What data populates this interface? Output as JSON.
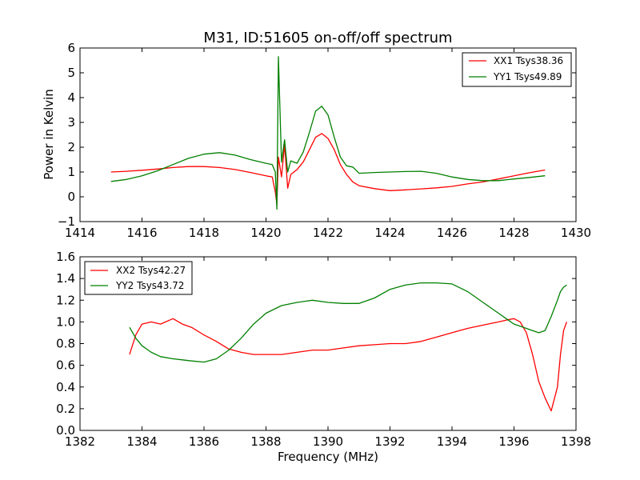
{
  "chart_data": [
    {
      "type": "line",
      "title": "M31, ID:51605 on-off/off spectrum",
      "xlabel": "",
      "ylabel": "Power in Kelvin",
      "xlim": [
        1414,
        1430
      ],
      "ylim": [
        -1,
        6
      ],
      "xticks": [
        "1414",
        "1416",
        "1418",
        "1420",
        "1422",
        "1424",
        "1426",
        "1428",
        "1430"
      ],
      "yticks": [
        "−1",
        "0",
        "1",
        "2",
        "3",
        "4",
        "5",
        "6"
      ],
      "grid": false,
      "legend_position": "top-right",
      "series": [
        {
          "name": "XX1 Tsys38.36",
          "color": "#ff0000",
          "x": [
            1415.0,
            1415.5,
            1416.0,
            1416.5,
            1417.0,
            1417.5,
            1418.0,
            1418.5,
            1419.0,
            1419.5,
            1420.0,
            1420.2,
            1420.3,
            1420.35,
            1420.4,
            1420.5,
            1420.6,
            1420.7,
            1420.8,
            1421.0,
            1421.2,
            1421.4,
            1421.6,
            1421.8,
            1422.0,
            1422.2,
            1422.4,
            1422.6,
            1422.8,
            1423.0,
            1423.5,
            1424.0,
            1424.5,
            1425.0,
            1425.5,
            1426.0,
            1426.5,
            1427.0,
            1427.5,
            1428.0,
            1428.5,
            1429.0
          ],
          "y": [
            1.0,
            1.03,
            1.07,
            1.12,
            1.18,
            1.22,
            1.22,
            1.18,
            1.1,
            0.98,
            0.85,
            0.8,
            0.2,
            -0.3,
            1.6,
            0.8,
            2.1,
            0.35,
            0.9,
            1.1,
            1.4,
            1.9,
            2.4,
            2.55,
            2.35,
            1.9,
            1.3,
            0.9,
            0.6,
            0.45,
            0.33,
            0.25,
            0.28,
            0.32,
            0.36,
            0.42,
            0.52,
            0.6,
            0.72,
            0.85,
            0.97,
            1.08
          ]
        },
        {
          "name": "YY1 Tsys49.89",
          "color": "#008000",
          "x": [
            1415.0,
            1415.5,
            1416.0,
            1416.5,
            1417.0,
            1417.5,
            1418.0,
            1418.5,
            1419.0,
            1419.5,
            1420.0,
            1420.2,
            1420.3,
            1420.35,
            1420.4,
            1420.5,
            1420.6,
            1420.7,
            1420.8,
            1421.0,
            1421.2,
            1421.4,
            1421.6,
            1421.8,
            1422.0,
            1422.2,
            1422.4,
            1422.6,
            1422.8,
            1423.0,
            1423.5,
            1424.0,
            1424.5,
            1425.0,
            1425.5,
            1426.0,
            1426.5,
            1427.0,
            1427.5,
            1428.0,
            1428.5,
            1429.0
          ],
          "y": [
            0.62,
            0.7,
            0.85,
            1.05,
            1.3,
            1.55,
            1.72,
            1.78,
            1.68,
            1.5,
            1.35,
            1.3,
            1.0,
            -0.5,
            5.65,
            1.4,
            2.3,
            1.0,
            1.45,
            1.35,
            1.8,
            2.6,
            3.45,
            3.65,
            3.3,
            2.4,
            1.6,
            1.25,
            1.2,
            0.95,
            0.98,
            1.0,
            1.02,
            1.03,
            0.95,
            0.8,
            0.7,
            0.65,
            0.65,
            0.72,
            0.78,
            0.85
          ]
        }
      ]
    },
    {
      "type": "line",
      "title": "",
      "xlabel": "Frequency (MHz)",
      "ylabel": "",
      "xlim": [
        1382,
        1398
      ],
      "ylim": [
        0.0,
        1.6
      ],
      "xticks": [
        "1382",
        "1384",
        "1386",
        "1388",
        "1390",
        "1392",
        "1394",
        "1396",
        "1398"
      ],
      "yticks": [
        "0.0",
        "0.2",
        "0.4",
        "0.6",
        "0.8",
        "1.0",
        "1.2",
        "1.4",
        "1.6"
      ],
      "grid": false,
      "legend_position": "top-left",
      "series": [
        {
          "name": "XX2 Tsys42.27",
          "color": "#ff0000",
          "x": [
            1383.6,
            1383.8,
            1384.0,
            1384.3,
            1384.6,
            1385.0,
            1385.3,
            1385.6,
            1386.0,
            1386.4,
            1386.8,
            1387.2,
            1387.6,
            1388.0,
            1388.5,
            1389.0,
            1389.5,
            1390.0,
            1390.5,
            1391.0,
            1391.5,
            1392.0,
            1392.5,
            1393.0,
            1393.5,
            1394.0,
            1394.5,
            1395.0,
            1395.5,
            1395.8,
            1396.0,
            1396.2,
            1396.4,
            1396.6,
            1396.8,
            1397.0,
            1397.2,
            1397.4,
            1397.5,
            1397.6,
            1397.7
          ],
          "y": [
            0.7,
            0.88,
            0.98,
            1.0,
            0.98,
            1.03,
            0.98,
            0.95,
            0.88,
            0.82,
            0.75,
            0.72,
            0.7,
            0.7,
            0.7,
            0.72,
            0.74,
            0.74,
            0.76,
            0.78,
            0.79,
            0.8,
            0.8,
            0.82,
            0.86,
            0.9,
            0.94,
            0.97,
            1.0,
            1.02,
            1.03,
            1.0,
            0.9,
            0.7,
            0.45,
            0.3,
            0.18,
            0.4,
            0.7,
            0.92,
            1.0
          ]
        },
        {
          "name": "YY2 Tsys43.72",
          "color": "#008000",
          "x": [
            1383.6,
            1383.8,
            1384.0,
            1384.3,
            1384.6,
            1385.0,
            1385.3,
            1385.6,
            1386.0,
            1386.4,
            1386.8,
            1387.2,
            1387.6,
            1388.0,
            1388.5,
            1389.0,
            1389.5,
            1390.0,
            1390.5,
            1391.0,
            1391.5,
            1392.0,
            1392.5,
            1393.0,
            1393.5,
            1394.0,
            1394.5,
            1395.0,
            1395.5,
            1395.8,
            1396.0,
            1396.2,
            1396.4,
            1396.6,
            1396.8,
            1397.0,
            1397.2,
            1397.4,
            1397.5,
            1397.6,
            1397.7
          ],
          "y": [
            0.95,
            0.85,
            0.78,
            0.72,
            0.68,
            0.66,
            0.65,
            0.64,
            0.63,
            0.66,
            0.74,
            0.85,
            0.98,
            1.08,
            1.15,
            1.18,
            1.2,
            1.18,
            1.17,
            1.17,
            1.22,
            1.3,
            1.34,
            1.36,
            1.36,
            1.35,
            1.28,
            1.18,
            1.08,
            1.02,
            0.98,
            0.96,
            0.94,
            0.92,
            0.9,
            0.92,
            1.05,
            1.2,
            1.28,
            1.32,
            1.34
          ]
        }
      ]
    }
  ]
}
